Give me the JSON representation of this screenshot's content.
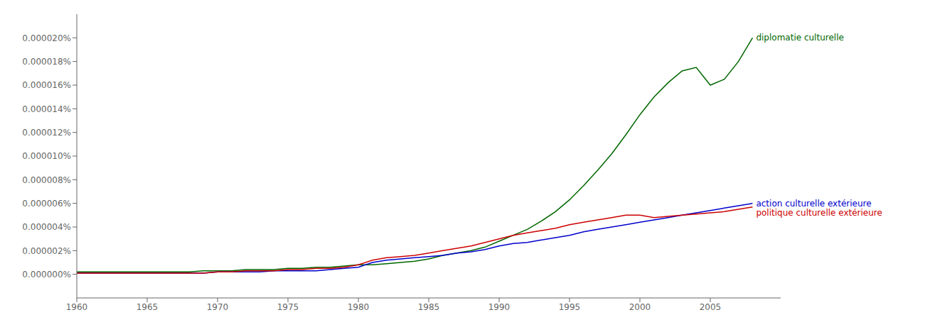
{
  "chart_data": {
    "type": "line",
    "title": "",
    "x": [
      1960,
      1961,
      1962,
      1963,
      1964,
      1965,
      1966,
      1967,
      1968,
      1969,
      1970,
      1971,
      1972,
      1973,
      1974,
      1975,
      1976,
      1977,
      1978,
      1979,
      1980,
      1981,
      1982,
      1983,
      1984,
      1985,
      1986,
      1987,
      1988,
      1989,
      1990,
      1991,
      1992,
      1993,
      1994,
      1995,
      1996,
      1997,
      1998,
      1999,
      2000,
      2001,
      2002,
      2003,
      2004,
      2005,
      2006,
      2007,
      2008
    ],
    "series": [
      {
        "name": "diplomatie culturelle",
        "color": "#006600",
        "values": [
          2e-07,
          2e-07,
          2e-07,
          2e-07,
          2e-07,
          2e-07,
          2e-07,
          2e-07,
          2e-07,
          3e-07,
          3e-07,
          3e-07,
          4e-07,
          4e-07,
          4e-07,
          5e-07,
          5e-07,
          6e-07,
          6e-07,
          7e-07,
          8e-07,
          8e-07,
          9e-07,
          1e-06,
          1.1e-06,
          1.3e-06,
          1.6e-06,
          1.8e-06,
          2e-06,
          2.3e-06,
          2.8e-06,
          3.3e-06,
          3.8e-06,
          4.5e-06,
          5.3e-06,
          6.3e-06,
          7.5e-06,
          8.8e-06,
          1.02e-05,
          1.18e-05,
          1.35e-05,
          1.5e-05,
          1.62e-05,
          1.72e-05,
          1.75e-05,
          1.6e-05,
          1.65e-05,
          1.8e-05,
          2e-05
        ]
      },
      {
        "name": "action culturelle extérieure",
        "color": "#0000cc",
        "values": [
          1e-07,
          1e-07,
          1e-07,
          1e-07,
          1e-07,
          1e-07,
          1e-07,
          1e-07,
          1e-07,
          1e-07,
          2e-07,
          2e-07,
          2e-07,
          2e-07,
          3e-07,
          3e-07,
          3e-07,
          3e-07,
          4e-07,
          5e-07,
          6e-07,
          1e-06,
          1.2e-06,
          1.3e-06,
          1.4e-06,
          1.5e-06,
          1.6e-06,
          1.8e-06,
          1.9e-06,
          2.1e-06,
          2.4e-06,
          2.6e-06,
          2.7e-06,
          2.9e-06,
          3.1e-06,
          3.3e-06,
          3.6e-06,
          3.8e-06,
          4e-06,
          4.2e-06,
          4.4e-06,
          4.6e-06,
          4.8e-06,
          5e-06,
          5.2e-06,
          5.4e-06,
          5.6e-06,
          5.8e-06,
          6e-06
        ]
      },
      {
        "name": "politique culturelle extérieure",
        "color": "#cc0000",
        "values": [
          1e-07,
          1e-07,
          1e-07,
          1e-07,
          1e-07,
          1e-07,
          1e-07,
          1e-07,
          1e-07,
          1e-07,
          2e-07,
          2e-07,
          3e-07,
          3e-07,
          3e-07,
          4e-07,
          4e-07,
          5e-07,
          5e-07,
          6e-07,
          8e-07,
          1.2e-06,
          1.4e-06,
          1.5e-06,
          1.6e-06,
          1.8e-06,
          2e-06,
          2.2e-06,
          2.4e-06,
          2.7e-06,
          3e-06,
          3.3e-06,
          3.5e-06,
          3.7e-06,
          3.9e-06,
          4.2e-06,
          4.4e-06,
          4.6e-06,
          4.8e-06,
          5e-06,
          5e-06,
          4.8e-06,
          4.9e-06,
          5e-06,
          5.1e-06,
          5.2e-06,
          5.3e-06,
          5.5e-06,
          5.7e-06
        ]
      }
    ],
    "xlim": [
      1960,
      2010
    ],
    "xticks": [
      1960,
      1965,
      1970,
      1975,
      1980,
      1985,
      1990,
      1995,
      2000,
      2005
    ],
    "ylim": [
      -2e-06,
      2.2e-05
    ],
    "yticks": [
      {
        "value": 0,
        "label": "0.000000%"
      },
      {
        "value": 2e-06,
        "label": "0.000002%"
      },
      {
        "value": 4e-06,
        "label": "0.000004%"
      },
      {
        "value": 6e-06,
        "label": "0.000006%"
      },
      {
        "value": 8e-06,
        "label": "0.000008%"
      },
      {
        "value": 1e-05,
        "label": "0.000010%"
      },
      {
        "value": 1.2e-05,
        "label": "0.000012%"
      },
      {
        "value": 1.4e-05,
        "label": "0.000014%"
      },
      {
        "value": 1.6e-05,
        "label": "0.000016%"
      },
      {
        "value": 1.8e-05,
        "label": "0.000018%"
      },
      {
        "value": 2e-05,
        "label": "0.000020%"
      }
    ],
    "grid": false
  }
}
